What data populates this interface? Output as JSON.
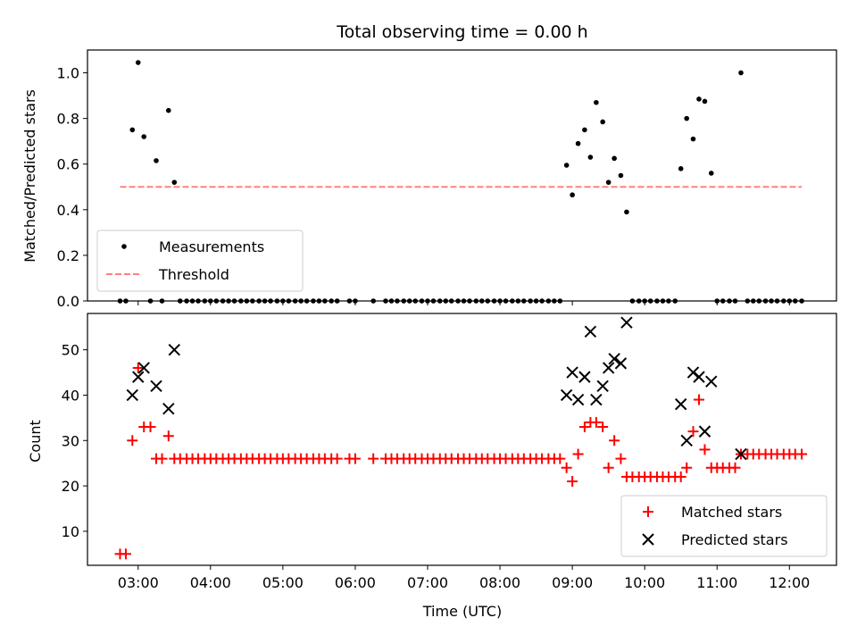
{
  "chart_data": [
    {
      "type": "scatter",
      "title": "Total observing time = 0.00 h",
      "xlabel": "",
      "ylabel": "Matched/Predicted stars",
      "xlim": [
        2.3,
        12.65
      ],
      "ylim": [
        0,
        1.1
      ],
      "xticks": [
        3,
        4,
        5,
        6,
        7,
        8,
        9,
        10,
        11,
        12
      ],
      "yticks": [
        0.0,
        0.2,
        0.4,
        0.6,
        0.8,
        1.0
      ],
      "ytick_labels": [
        "0.0",
        "0.2",
        "0.4",
        "0.6",
        "0.8",
        "1.0"
      ],
      "legend": {
        "placement": "lower-left",
        "entries": [
          "Measurements",
          "Threshold"
        ]
      },
      "series": [
        {
          "name": "Measurements",
          "color": "#000000",
          "marker": "dot",
          "x": [
            2.75,
            2.83,
            2.92,
            3.0,
            3.08,
            3.17,
            3.25,
            3.33,
            3.42,
            3.5,
            3.58,
            3.67,
            3.75,
            3.83,
            3.92,
            4.0,
            4.08,
            4.17,
            4.25,
            4.33,
            4.42,
            4.5,
            4.58,
            4.67,
            4.75,
            4.83,
            4.92,
            5.0,
            5.08,
            5.17,
            5.25,
            5.33,
            5.42,
            5.5,
            5.58,
            5.67,
            5.75,
            5.92,
            6.0,
            6.25,
            6.42,
            6.5,
            6.58,
            6.67,
            6.75,
            6.83,
            6.92,
            7.0,
            7.08,
            7.17,
            7.25,
            7.33,
            7.42,
            7.5,
            7.58,
            7.67,
            7.75,
            7.83,
            7.92,
            8.0,
            8.08,
            8.17,
            8.25,
            8.33,
            8.42,
            8.5,
            8.58,
            8.67,
            8.75,
            8.83,
            8.92,
            9.0,
            9.08,
            9.17,
            9.25,
            9.33,
            9.42,
            9.5,
            9.58,
            9.67,
            9.75,
            9.83,
            9.92,
            10.0,
            10.08,
            10.17,
            10.25,
            10.33,
            10.42,
            10.5,
            10.58,
            10.67,
            10.75,
            10.83,
            10.92,
            11.0,
            11.08,
            11.17,
            11.25,
            11.33,
            11.42,
            11.5,
            11.58,
            11.67,
            11.75,
            11.83,
            11.92,
            12.0,
            12.08,
            12.17
          ],
          "y": [
            0,
            0,
            0.75,
            1.045,
            0.72,
            0,
            0.615,
            0,
            0.835,
            0.52,
            0,
            0,
            0,
            0,
            0,
            0,
            0,
            0,
            0,
            0,
            0,
            0,
            0,
            0,
            0,
            0,
            0,
            0,
            0,
            0,
            0,
            0,
            0,
            0,
            0,
            0,
            0,
            0,
            0,
            0,
            0,
            0,
            0,
            0,
            0,
            0,
            0,
            0,
            0,
            0,
            0,
            0,
            0,
            0,
            0,
            0,
            0,
            0,
            0,
            0,
            0,
            0,
            0,
            0,
            0,
            0,
            0,
            0,
            0,
            0,
            0.595,
            0.465,
            0.69,
            0.75,
            0.63,
            0.87,
            0.785,
            0.52,
            0.625,
            0.55,
            0.39,
            0,
            0,
            0,
            0,
            0,
            0,
            0,
            0,
            0.58,
            0.8,
            0.71,
            0.885,
            0.875,
            0.56,
            0,
            0,
            0,
            0,
            1.0,
            0,
            0,
            0,
            0,
            0,
            0,
            0,
            0,
            0,
            0
          ]
        },
        {
          "name": "Threshold",
          "color": "#ff8080",
          "linestyle": "dashed",
          "x": [
            2.75,
            12.17
          ],
          "y": [
            0.5,
            0.5
          ]
        }
      ]
    },
    {
      "type": "scatter",
      "title": "",
      "xlabel": "Time (UTC)",
      "ylabel": "Count",
      "xlim": [
        2.3,
        12.65
      ],
      "ylim": [
        2.5,
        58
      ],
      "xticks": [
        3,
        4,
        5,
        6,
        7,
        8,
        9,
        10,
        11,
        12
      ],
      "xtick_labels": [
        "03:00",
        "04:00",
        "05:00",
        "06:00",
        "07:00",
        "08:00",
        "09:00",
        "10:00",
        "11:00",
        "12:00"
      ],
      "yticks": [
        10,
        20,
        30,
        40,
        50
      ],
      "ytick_labels": [
        "10",
        "20",
        "30",
        "40",
        "50"
      ],
      "legend": {
        "placement": "lower-right",
        "entries": [
          "Matched stars",
          "Predicted stars"
        ]
      },
      "series": [
        {
          "name": "Matched stars",
          "color": "#ff0000",
          "marker": "plus",
          "x": [
            2.75,
            2.83,
            2.92,
            3.0,
            3.08,
            3.17,
            3.25,
            3.33,
            3.42,
            3.5,
            3.58,
            3.67,
            3.75,
            3.83,
            3.92,
            4.0,
            4.08,
            4.17,
            4.25,
            4.33,
            4.42,
            4.5,
            4.58,
            4.67,
            4.75,
            4.83,
            4.92,
            5.0,
            5.08,
            5.17,
            5.25,
            5.33,
            5.42,
            5.5,
            5.58,
            5.67,
            5.75,
            5.92,
            6.0,
            6.25,
            6.42,
            6.5,
            6.58,
            6.67,
            6.75,
            6.83,
            6.92,
            7.0,
            7.08,
            7.17,
            7.25,
            7.33,
            7.42,
            7.5,
            7.58,
            7.67,
            7.75,
            7.83,
            7.92,
            8.0,
            8.08,
            8.17,
            8.25,
            8.33,
            8.42,
            8.5,
            8.58,
            8.67,
            8.75,
            8.83,
            8.92,
            9.0,
            9.08,
            9.17,
            9.25,
            9.33,
            9.42,
            9.5,
            9.58,
            9.67,
            9.75,
            9.83,
            9.92,
            10.0,
            10.08,
            10.17,
            10.25,
            10.33,
            10.42,
            10.5,
            10.58,
            10.67,
            10.75,
            10.83,
            10.92,
            11.0,
            11.08,
            11.17,
            11.25,
            11.33,
            11.42,
            11.5,
            11.58,
            11.67,
            11.75,
            11.83,
            11.92,
            12.0,
            12.08,
            12.17
          ],
          "y": [
            5,
            5,
            30,
            46,
            33,
            33,
            26,
            26,
            31,
            26,
            26,
            26,
            26,
            26,
            26,
            26,
            26,
            26,
            26,
            26,
            26,
            26,
            26,
            26,
            26,
            26,
            26,
            26,
            26,
            26,
            26,
            26,
            26,
            26,
            26,
            26,
            26,
            26,
            26,
            26,
            26,
            26,
            26,
            26,
            26,
            26,
            26,
            26,
            26,
            26,
            26,
            26,
            26,
            26,
            26,
            26,
            26,
            26,
            26,
            26,
            26,
            26,
            26,
            26,
            26,
            26,
            26,
            26,
            26,
            26,
            24,
            21,
            27,
            33,
            34,
            34,
            33,
            24,
            30,
            26,
            22,
            22,
            22,
            22,
            22,
            22,
            22,
            22,
            22,
            22,
            24,
            32,
            39,
            28,
            24,
            24,
            24,
            24,
            24,
            27,
            27,
            27,
            27,
            27,
            27,
            27,
            27,
            27,
            27,
            27
          ]
        },
        {
          "name": "Predicted stars",
          "color": "#000000",
          "marker": "x",
          "x": [
            2.92,
            3.0,
            3.08,
            3.25,
            3.42,
            3.5,
            8.92,
            9.0,
            9.08,
            9.17,
            9.25,
            9.33,
            9.42,
            9.5,
            9.58,
            9.67,
            9.75,
            10.5,
            10.58,
            10.67,
            10.75,
            10.83,
            10.92,
            11.33
          ],
          "y": [
            40,
            44,
            46,
            42,
            37,
            50,
            40,
            45,
            39,
            44,
            54,
            39,
            42,
            46,
            48,
            47,
            56,
            38,
            30,
            45,
            44,
            32,
            43,
            27
          ]
        }
      ]
    }
  ]
}
